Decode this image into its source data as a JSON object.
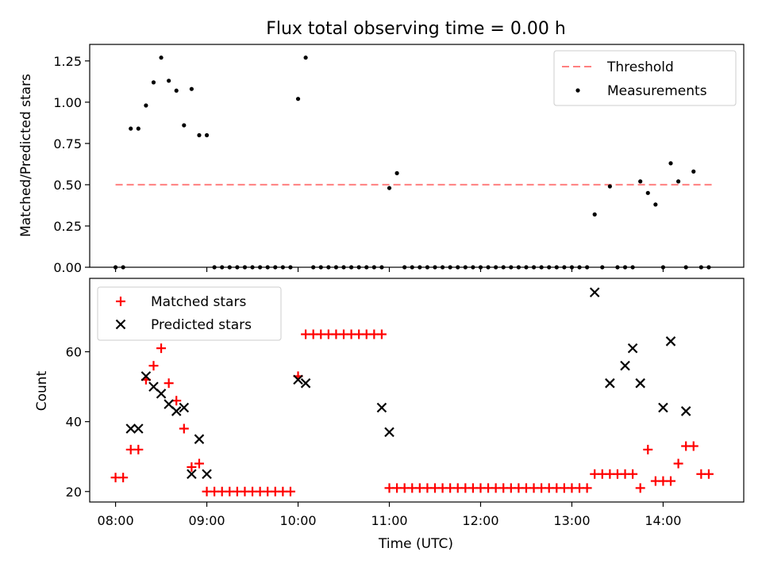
{
  "chart_data": [
    {
      "type": "scatter",
      "title": "Flux total observing time = 0.00 h",
      "xlabel": "",
      "ylabel": "Matched/Predicted stars",
      "xlim": [
        "07:43",
        "14:53"
      ],
      "ylim": [
        0,
        1.35
      ],
      "yticks": [
        "0.00",
        "0.25",
        "0.50",
        "0.75",
        "1.00",
        "1.25"
      ],
      "legend_position": "upper right",
      "grid": false,
      "threshold": {
        "name": "Threshold",
        "value": 0.5,
        "x_start": "08:00",
        "x_end": "14:33",
        "color": "#ff7f7f",
        "style": "dashed"
      },
      "series": [
        {
          "name": "Measurements",
          "color": "#000000",
          "marker": "dot",
          "x": [
            "08:00",
            "08:05",
            "08:10",
            "08:15",
            "08:20",
            "08:25",
            "08:30",
            "08:35",
            "08:40",
            "08:45",
            "08:50",
            "08:55",
            "09:00",
            "09:05",
            "09:10",
            "09:15",
            "09:20",
            "09:25",
            "09:30",
            "09:35",
            "09:40",
            "09:45",
            "09:50",
            "09:55",
            "10:00",
            "10:05",
            "10:10",
            "10:15",
            "10:20",
            "10:25",
            "10:30",
            "10:35",
            "10:40",
            "10:45",
            "10:50",
            "10:55",
            "11:00",
            "11:05",
            "11:10",
            "11:15",
            "11:20",
            "11:25",
            "11:30",
            "11:35",
            "11:40",
            "11:45",
            "11:50",
            "11:55",
            "12:00",
            "12:05",
            "12:10",
            "12:15",
            "12:20",
            "12:25",
            "12:30",
            "12:35",
            "12:40",
            "12:45",
            "12:50",
            "12:55",
            "13:00",
            "13:05",
            "13:10",
            "13:15",
            "13:20",
            "13:25",
            "13:30",
            "13:35",
            "13:40",
            "13:45",
            "13:50",
            "13:55",
            "14:00",
            "14:05",
            "14:10",
            "14:15",
            "14:20",
            "14:25",
            "14:30"
          ],
          "y": [
            0,
            0,
            0.84,
            0.84,
            0.98,
            1.12,
            1.27,
            1.13,
            1.07,
            0.86,
            1.08,
            0.8,
            0.8,
            0,
            0,
            0,
            0,
            0,
            0,
            0,
            0,
            0,
            0,
            0,
            1.02,
            1.27,
            0,
            0,
            0,
            0,
            0,
            0,
            0,
            0,
            0,
            0,
            0.48,
            0.57,
            0,
            0,
            0,
            0,
            0,
            0,
            0,
            0,
            0,
            0,
            0,
            0,
            0,
            0,
            0,
            0,
            0,
            0,
            0,
            0,
            0,
            0,
            0,
            0,
            0,
            0.32,
            0,
            0.49,
            0,
            0,
            0,
            0.52,
            0.45,
            0.38,
            0,
            0.63,
            0.52,
            0,
            0.58,
            0,
            0
          ]
        }
      ]
    },
    {
      "type": "scatter",
      "title": "",
      "xlabel": "Time (UTC)",
      "ylabel": "Count",
      "xlim": [
        "07:43",
        "14:53"
      ],
      "ylim": [
        17,
        81
      ],
      "xticks": [
        "08:00",
        "09:00",
        "10:00",
        "11:00",
        "12:00",
        "13:00",
        "14:00"
      ],
      "yticks": [
        "20",
        "40",
        "60"
      ],
      "legend_position": "upper left",
      "grid": false,
      "series": [
        {
          "name": "Matched stars",
          "color": "#ff0000",
          "marker": "plus",
          "x": [
            "08:00",
            "08:05",
            "08:10",
            "08:15",
            "08:20",
            "08:25",
            "08:30",
            "08:35",
            "08:40",
            "08:45",
            "08:50",
            "08:55",
            "09:00",
            "09:05",
            "09:10",
            "09:15",
            "09:20",
            "09:25",
            "09:30",
            "09:35",
            "09:40",
            "09:45",
            "09:50",
            "09:55",
            "10:00",
            "10:05",
            "10:10",
            "10:15",
            "10:20",
            "10:25",
            "10:30",
            "10:35",
            "10:40",
            "10:45",
            "10:50",
            "10:55",
            "11:00",
            "11:05",
            "11:10",
            "11:15",
            "11:20",
            "11:25",
            "11:30",
            "11:35",
            "11:40",
            "11:45",
            "11:50",
            "11:55",
            "12:00",
            "12:05",
            "12:10",
            "12:15",
            "12:20",
            "12:25",
            "12:30",
            "12:35",
            "12:40",
            "12:45",
            "12:50",
            "12:55",
            "13:00",
            "13:05",
            "13:10",
            "13:15",
            "13:20",
            "13:25",
            "13:30",
            "13:35",
            "13:40",
            "13:45",
            "13:50",
            "13:55",
            "14:00",
            "14:05",
            "14:10",
            "14:15",
            "14:20",
            "14:25",
            "14:30"
          ],
          "y": [
            24,
            24,
            32,
            32,
            52,
            56,
            61,
            51,
            46,
            38,
            27,
            28,
            20,
            20,
            20,
            20,
            20,
            20,
            20,
            20,
            20,
            20,
            20,
            20,
            53,
            65,
            65,
            65,
            65,
            65,
            65,
            65,
            65,
            65,
            65,
            65,
            21,
            21,
            21,
            21,
            21,
            21,
            21,
            21,
            21,
            21,
            21,
            21,
            21,
            21,
            21,
            21,
            21,
            21,
            21,
            21,
            21,
            21,
            21,
            21,
            21,
            21,
            21,
            25,
            25,
            25,
            25,
            25,
            25,
            21,
            32,
            23,
            23,
            23,
            28,
            33,
            33,
            25,
            25
          ]
        },
        {
          "name": "Predicted stars",
          "color": "#000000",
          "marker": "x",
          "x": [
            "08:10",
            "08:15",
            "08:20",
            "08:25",
            "08:30",
            "08:35",
            "08:40",
            "08:45",
            "08:50",
            "08:55",
            "09:00",
            "10:00",
            "10:05",
            "10:55",
            "11:00",
            "13:15",
            "13:25",
            "13:35",
            "13:40",
            "13:45",
            "14:00",
            "14:05",
            "14:15"
          ],
          "y": [
            38,
            38,
            53,
            50,
            48,
            45,
            43,
            44,
            25,
            35,
            25,
            52,
            51,
            44,
            37,
            77,
            51,
            56,
            61,
            51,
            44,
            63,
            43
          ]
        }
      ]
    }
  ]
}
